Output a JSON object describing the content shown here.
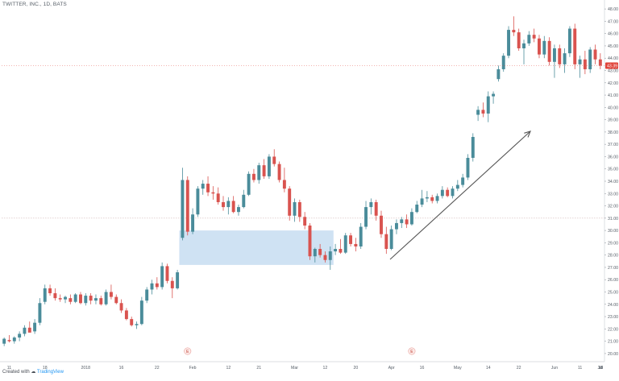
{
  "header": {
    "ticker_label": "TWITTER, INC., 1D, BATS"
  },
  "footer": {
    "created_with": "Created with",
    "brand": "TradingView"
  },
  "colors": {
    "up": "#4a8c9a",
    "down": "#d9534f",
    "price_badge": "#e0443a",
    "zone_fill": "#cfe2f3",
    "arrow": "#555555"
  },
  "icons": {
    "earnings_marker": "earnings-marker-icon",
    "brand_logo": "tradingview-cloud-icon"
  },
  "chart_data": {
    "type": "candlestick",
    "title": "TWITTER, INC., 1D, BATS",
    "ylim": [
      19.6,
      48.4
    ],
    "y_ticks": [
      "48.00",
      "47.00",
      "46.00",
      "45.00",
      "44.00",
      "43.00",
      "42.00",
      "41.00",
      "40.00",
      "39.00",
      "38.00",
      "37.00",
      "36.00",
      "35.00",
      "34.00",
      "33.00",
      "32.00",
      "31.00",
      "30.00",
      "29.00",
      "28.00",
      "27.00",
      "26.00",
      "25.00",
      "24.00",
      "23.00",
      "22.00",
      "21.00",
      "20.00"
    ],
    "x_ticks": [
      "11",
      "18",
      "2018",
      "16",
      "22",
      "Feb",
      "12",
      "21",
      "Mar",
      "12",
      "20",
      "Apr",
      "16",
      "May",
      "14",
      "22",
      "Jun",
      "11",
      "18",
      "Jul",
      "16"
    ],
    "current_price_label": "43.39",
    "current_price": 43.39,
    "horizontal_line": 31.0,
    "markers": [
      "E",
      "E"
    ],
    "candles": [
      [
        20.8,
        21.3,
        20.6,
        21.2
      ],
      [
        21.1,
        21.5,
        20.9,
        21.0
      ],
      [
        21.0,
        21.4,
        20.8,
        21.3
      ],
      [
        21.3,
        21.8,
        21.0,
        21.6
      ],
      [
        21.6,
        22.3,
        21.4,
        22.1
      ],
      [
        22.1,
        22.6,
        21.8,
        21.7
      ],
      [
        21.8,
        22.8,
        21.6,
        22.5
      ],
      [
        22.5,
        24.5,
        22.3,
        24.1
      ],
      [
        24.2,
        25.6,
        24.0,
        25.3
      ],
      [
        25.3,
        25.6,
        24.7,
        24.9
      ],
      [
        24.9,
        25.3,
        24.3,
        24.5
      ],
      [
        24.5,
        24.8,
        24.2,
        24.4
      ],
      [
        24.4,
        24.7,
        24.1,
        24.6
      ],
      [
        24.5,
        24.8,
        24.0,
        24.2
      ],
      [
        24.2,
        24.9,
        24.1,
        24.8
      ],
      [
        24.8,
        25.0,
        24.0,
        24.1
      ],
      [
        24.1,
        24.9,
        23.9,
        24.7
      ],
      [
        24.7,
        24.9,
        24.0,
        24.3
      ],
      [
        24.3,
        24.8,
        24.0,
        24.5
      ],
      [
        24.5,
        24.7,
        23.9,
        24.0
      ],
      [
        24.0,
        25.2,
        23.9,
        25.0
      ],
      [
        25.0,
        25.6,
        24.4,
        24.6
      ],
      [
        24.6,
        24.8,
        24.0,
        24.1
      ],
      [
        24.1,
        24.4,
        23.3,
        23.5
      ],
      [
        23.5,
        23.7,
        22.7,
        22.8
      ],
      [
        22.8,
        23.0,
        22.2,
        22.3
      ],
      [
        22.3,
        22.6,
        22.0,
        22.4
      ],
      [
        22.4,
        24.6,
        22.3,
        24.3
      ],
      [
        24.3,
        25.4,
        24.1,
        25.2
      ],
      [
        25.2,
        26.0,
        24.8,
        25.7
      ],
      [
        25.7,
        26.2,
        25.2,
        25.4
      ],
      [
        25.4,
        27.4,
        25.2,
        27.1
      ],
      [
        27.1,
        27.3,
        25.7,
        25.9
      ],
      [
        25.9,
        26.2,
        24.5,
        25.3
      ],
      [
        25.3,
        26.8,
        25.2,
        26.6
      ],
      [
        29.4,
        35.1,
        29.2,
        34.1
      ],
      [
        34.1,
        34.4,
        29.6,
        29.9
      ],
      [
        29.9,
        31.8,
        29.7,
        31.3
      ],
      [
        31.3,
        33.6,
        31.1,
        33.4
      ],
      [
        33.4,
        34.1,
        32.9,
        33.8
      ],
      [
        33.8,
        34.4,
        32.8,
        33.1
      ],
      [
        33.1,
        33.6,
        32.5,
        33.0
      ],
      [
        33.0,
        33.5,
        32.1,
        32.3
      ],
      [
        32.3,
        32.8,
        31.6,
        31.9
      ],
      [
        31.9,
        32.7,
        31.3,
        32.4
      ],
      [
        32.4,
        32.8,
        31.4,
        31.5
      ],
      [
        31.5,
        32.1,
        31.2,
        31.9
      ],
      [
        31.9,
        33.3,
        31.8,
        32.9
      ],
      [
        32.9,
        34.8,
        32.8,
        34.6
      ],
      [
        34.6,
        35.0,
        33.9,
        34.1
      ],
      [
        34.1,
        35.5,
        33.8,
        35.3
      ],
      [
        35.3,
        35.8,
        34.2,
        34.4
      ],
      [
        34.4,
        36.2,
        34.2,
        36.0
      ],
      [
        36.0,
        36.6,
        35.2,
        35.4
      ],
      [
        35.4,
        35.6,
        33.9,
        34.1
      ],
      [
        34.1,
        35.1,
        33.1,
        33.4
      ],
      [
        33.4,
        33.6,
        30.8,
        31.2
      ],
      [
        31.2,
        32.6,
        30.7,
        32.3
      ],
      [
        32.3,
        32.5,
        30.7,
        31.1
      ],
      [
        31.1,
        31.5,
        30.1,
        30.4
      ],
      [
        30.4,
        30.6,
        27.6,
        27.9
      ],
      [
        27.9,
        28.6,
        27.4,
        28.5
      ],
      [
        28.5,
        28.9,
        27.8,
        28.0
      ],
      [
        28.0,
        28.3,
        27.4,
        27.6
      ],
      [
        27.6,
        28.7,
        26.8,
        28.3
      ],
      [
        28.3,
        28.9,
        28.0,
        28.5
      ],
      [
        28.5,
        29.3,
        28.1,
        28.2
      ],
      [
        28.2,
        29.8,
        28.1,
        29.6
      ],
      [
        29.6,
        29.8,
        28.7,
        28.9
      ],
      [
        28.9,
        29.4,
        28.3,
        28.7
      ],
      [
        28.7,
        30.6,
        28.5,
        30.3
      ],
      [
        30.3,
        32.4,
        30.1,
        31.9
      ],
      [
        31.9,
        32.6,
        31.3,
        32.3
      ],
      [
        32.3,
        32.5,
        30.8,
        31.2
      ],
      [
        31.2,
        31.6,
        29.4,
        29.7
      ],
      [
        29.7,
        30.3,
        28.1,
        28.5
      ],
      [
        28.5,
        30.4,
        28.4,
        30.1
      ],
      [
        30.1,
        30.9,
        29.7,
        30.6
      ],
      [
        30.6,
        31.1,
        30.2,
        30.9
      ],
      [
        30.9,
        31.3,
        30.2,
        30.5
      ],
      [
        30.5,
        31.8,
        30.4,
        31.5
      ],
      [
        31.5,
        32.4,
        31.4,
        32.1
      ],
      [
        32.1,
        33.3,
        31.9,
        32.6
      ],
      [
        32.6,
        33.2,
        32.3,
        32.7
      ],
      [
        32.7,
        32.9,
        32.2,
        32.4
      ],
      [
        32.4,
        33.0,
        32.2,
        32.8
      ],
      [
        32.8,
        33.6,
        32.6,
        33.3
      ],
      [
        33.3,
        33.5,
        32.7,
        32.8
      ],
      [
        32.8,
        33.6,
        32.6,
        33.4
      ],
      [
        33.4,
        34.1,
        33.2,
        33.7
      ],
      [
        33.7,
        34.6,
        33.5,
        34.3
      ],
      [
        34.3,
        36.2,
        34.1,
        35.9
      ],
      [
        35.9,
        37.9,
        35.6,
        37.6
      ],
      [
        39.4,
        40.1,
        38.9,
        39.8
      ],
      [
        39.8,
        40.4,
        39.2,
        39.5
      ],
      [
        39.5,
        41.3,
        38.8,
        40.9
      ],
      [
        40.9,
        41.3,
        40.3,
        41.1
      ],
      [
        42.3,
        43.4,
        42.1,
        43.1
      ],
      [
        43.1,
        44.4,
        42.9,
        44.2
      ],
      [
        44.2,
        46.6,
        44.0,
        46.3
      ],
      [
        46.3,
        47.4,
        45.8,
        46.1
      ],
      [
        46.1,
        46.4,
        44.6,
        44.8
      ],
      [
        44.8,
        45.5,
        43.5,
        45.2
      ],
      [
        45.2,
        46.2,
        45.0,
        45.9
      ],
      [
        45.9,
        46.4,
        45.3,
        45.6
      ],
      [
        45.6,
        45.9,
        44.0,
        44.3
      ],
      [
        44.3,
        45.8,
        44.0,
        45.4
      ],
      [
        45.4,
        45.7,
        43.4,
        43.7
      ],
      [
        43.7,
        45.1,
        42.4,
        44.8
      ],
      [
        44.8,
        45.1,
        43.2,
        43.5
      ],
      [
        43.5,
        44.8,
        42.8,
        44.4
      ],
      [
        44.4,
        46.6,
        44.1,
        46.4
      ],
      [
        46.4,
        46.8,
        43.1,
        43.5
      ],
      [
        43.5,
        44.2,
        42.4,
        43.9
      ],
      [
        43.9,
        44.6,
        42.7,
        43.1
      ],
      [
        43.1,
        44.9,
        42.8,
        44.7
      ],
      [
        44.7,
        45.1,
        43.5,
        43.9
      ],
      [
        43.9,
        44.4,
        43.1,
        43.39
      ]
    ]
  }
}
